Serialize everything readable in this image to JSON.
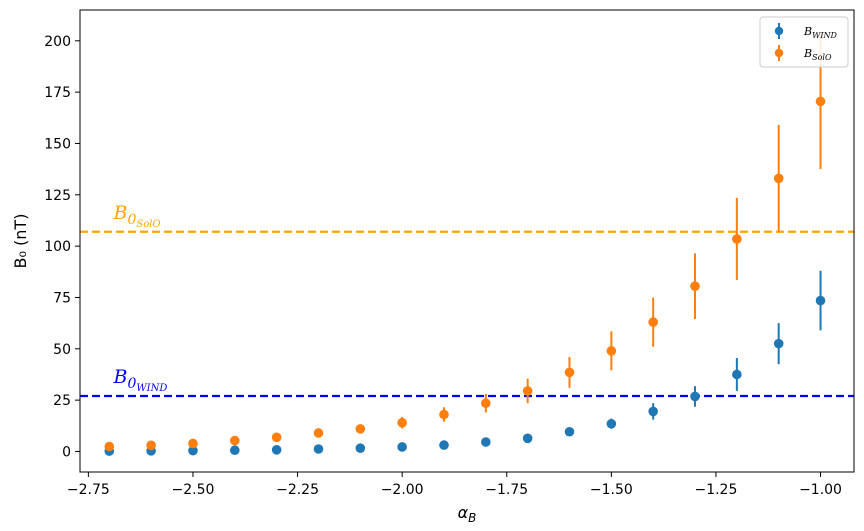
{
  "chart_data": {
    "type": "scatter",
    "xlabel": "α_B",
    "ylabel": "B₀ (nT)",
    "xlim": [
      -2.77,
      -0.92
    ],
    "ylim": [
      -10,
      215
    ],
    "x_ticks": [
      -2.75,
      -2.5,
      -2.25,
      -2.0,
      -1.75,
      -1.5,
      -1.25,
      -1.0
    ],
    "x_tick_labels": [
      "−2.75",
      "−2.50",
      "−2.25",
      "−2.00",
      "−1.75",
      "−1.50",
      "−1.25",
      "−1.00"
    ],
    "y_ticks": [
      0,
      25,
      50,
      75,
      100,
      125,
      150,
      175,
      200
    ],
    "y_tick_labels": [
      "0",
      "25",
      "50",
      "75",
      "100",
      "125",
      "150",
      "175",
      "200"
    ],
    "grid": false,
    "legend_position": "top-right",
    "x": [
      -2.7,
      -2.6,
      -2.5,
      -2.4,
      -2.3,
      -2.2,
      -2.1,
      -2.0,
      -1.9,
      -1.8,
      -1.7,
      -1.6,
      -1.5,
      -1.4,
      -1.3,
      -1.2,
      -1.1,
      -1.0
    ],
    "series": [
      {
        "name": "B_WIND",
        "legend_label": "B",
        "legend_sub": "WIND",
        "color": "#1f77b4",
        "values": [
          0.2,
          0.3,
          0.4,
          0.6,
          0.8,
          1.2,
          1.6,
          2.2,
          3.1,
          4.6,
          6.4,
          9.6,
          13.5,
          19.5,
          26.8,
          37.5,
          52.5,
          73.5
        ],
        "errors": [
          0.1,
          0.1,
          0.1,
          0.2,
          0.2,
          0.3,
          0.4,
          0.6,
          0.9,
          1.2,
          1.5,
          2.0,
          2.5,
          4.0,
          5.0,
          8.0,
          10.0,
          14.5
        ]
      },
      {
        "name": "B_SolO",
        "legend_label": "B",
        "legend_sub": "SolO",
        "color": "#ff7f0e",
        "values": [
          2.4,
          3.0,
          3.9,
          5.3,
          6.9,
          9.0,
          11.0,
          14.0,
          18.0,
          23.5,
          29.5,
          38.5,
          49.0,
          63.0,
          80.5,
          103.5,
          133.0,
          170.5
        ],
        "errors": [
          0.5,
          0.6,
          0.8,
          1.1,
          1.4,
          1.8,
          2.2,
          2.8,
          3.5,
          4.5,
          6.0,
          7.5,
          9.5,
          12.0,
          16.0,
          20.0,
          26.0,
          33.0
        ]
      }
    ],
    "hlines": [
      {
        "y": 107,
        "color": "#ffa500",
        "label": "B",
        "sub": "0",
        "subsub": "SolO"
      },
      {
        "y": 27,
        "color": "#0000ff",
        "label": "B",
        "sub": "0",
        "subsub": "WIND"
      }
    ]
  }
}
